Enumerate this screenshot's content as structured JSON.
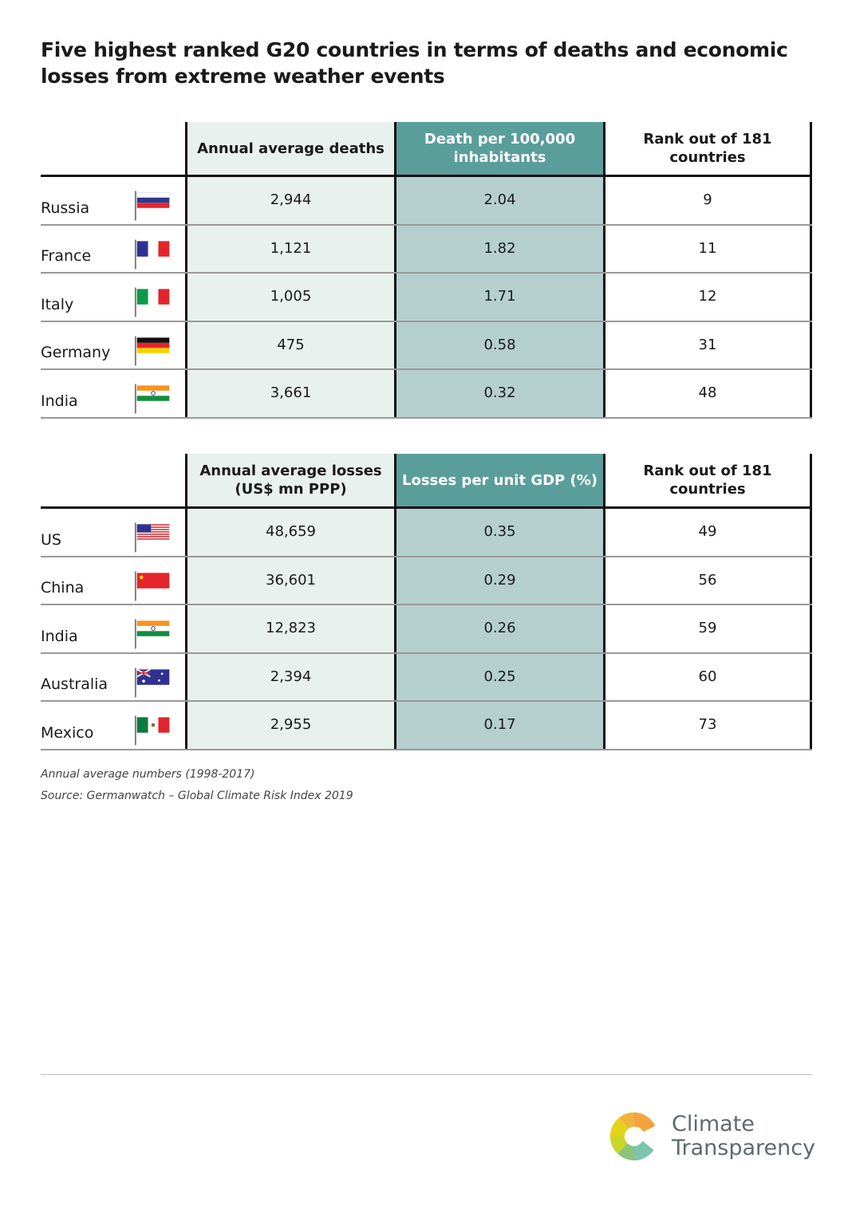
{
  "title": "Five highest ranked G20 countries in terms of deaths and economic losses from extreme weather events",
  "deaths_table": {
    "headers": [
      "",
      "Annual average deaths",
      "Death per 100,000 inhabitants",
      "Rank out of 181 countries"
    ],
    "rows": [
      {
        "country": "Russia",
        "flag": "russia",
        "v1": "2,944",
        "v2": "2.04",
        "v3": "9"
      },
      {
        "country": "France",
        "flag": "france",
        "v1": "1,121",
        "v2": "1.82",
        "v3": "11"
      },
      {
        "country": "Italy",
        "flag": "italy",
        "v1": "1,005",
        "v2": "1.71",
        "v3": "12"
      },
      {
        "country": "Germany",
        "flag": "germany",
        "v1": "475",
        "v2": "0.58",
        "v3": "31"
      },
      {
        "country": "India",
        "flag": "india",
        "v1": "3,661",
        "v2": "0.32",
        "v3": "48"
      }
    ]
  },
  "losses_table": {
    "headers": [
      "",
      "Annual average losses (US$ mn PPP)",
      "Losses per unit GDP (%)",
      "Rank out of 181 countries"
    ],
    "rows": [
      {
        "country": "US",
        "flag": "us",
        "v1": "48,659",
        "v2": "0.35",
        "v3": "49"
      },
      {
        "country": "China",
        "flag": "china",
        "v1": "36,601",
        "v2": "0.29",
        "v3": "56"
      },
      {
        "country": "India",
        "flag": "india",
        "v1": "12,823",
        "v2": "0.26",
        "v3": "59"
      },
      {
        "country": "Australia",
        "flag": "australia",
        "v1": "2,394",
        "v2": "0.25",
        "v3": "60"
      },
      {
        "country": "Mexico",
        "flag": "mexico",
        "v1": "2,955",
        "v2": "0.17",
        "v3": "73"
      }
    ]
  },
  "notes": [
    "Annual average numbers (1998-2017)",
    "Source: Germanwatch – Global Climate Risk Index 2019"
  ],
  "logo": {
    "line1": "Climate",
    "line2": "Transparency"
  }
}
